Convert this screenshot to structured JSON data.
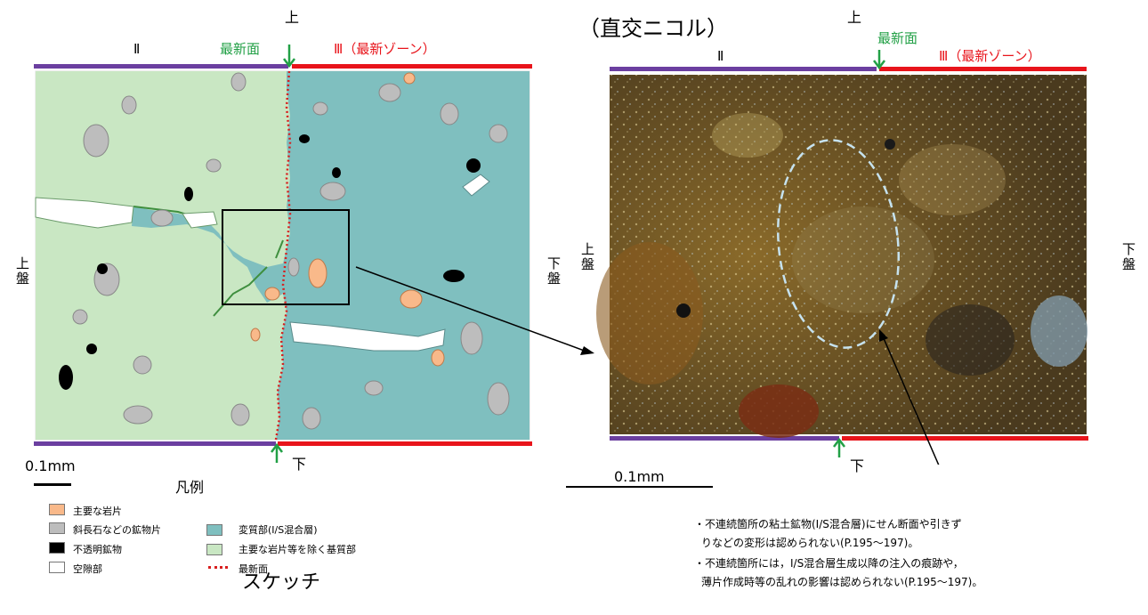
{
  "title": "（直交ニコル）",
  "sketch": {
    "caption": "スケッチ",
    "top_label": "上",
    "bottom_label": "下",
    "left_side_label": "上盤",
    "right_side_label": "下盤",
    "zone_left": "Ⅱ",
    "newest_face": "最新面",
    "zone_right": "Ⅲ（最新ゾーン）",
    "scale": "0.1mm"
  },
  "legend": {
    "title": "凡例",
    "items": [
      {
        "label": "主要な岩片",
        "color": "#f9b98a"
      },
      {
        "label": "斜長石などの鉱物片",
        "color": "#bdbdbd"
      },
      {
        "label": "不透明鉱物",
        "color": "#000000"
      },
      {
        "label": "空隙部",
        "color": "#ffffff"
      },
      {
        "label": "変質部(I/S混合層)",
        "color": "#7fbfbf"
      },
      {
        "label": "主要な岩片等を除く基質部",
        "color": "#c9e7c3"
      },
      {
        "label": "最新面",
        "color": "#d81e1e"
      }
    ]
  },
  "photo": {
    "top_label": "上",
    "bottom_label": "下",
    "left_side_label": "上盤",
    "right_side_label": "下盤",
    "zone_left": "Ⅱ",
    "newest_face": "最新面",
    "zone_right": "Ⅲ（最新ゾーン）",
    "scale": "0.1mm"
  },
  "notes": [
    "・不連続箇所の粘土鉱物(I/S混合層)にせん断面や引きず",
    "りなどの変形は認められない(P.195～197)。",
    "・不連続箇所には，I/S混合層生成以降の注入の痕跡や，",
    "薄片作成時等の乱れの影響は認められない(P.195～197)。"
  ],
  "colors": {
    "zone2": "#6b3fa0",
    "zone3": "#e8141b",
    "arrow": "#22a046",
    "matrix": "#c9e7c3",
    "altered": "#7fbfbf",
    "rock": "#f9b98a",
    "mineral": "#bdbdbd"
  }
}
